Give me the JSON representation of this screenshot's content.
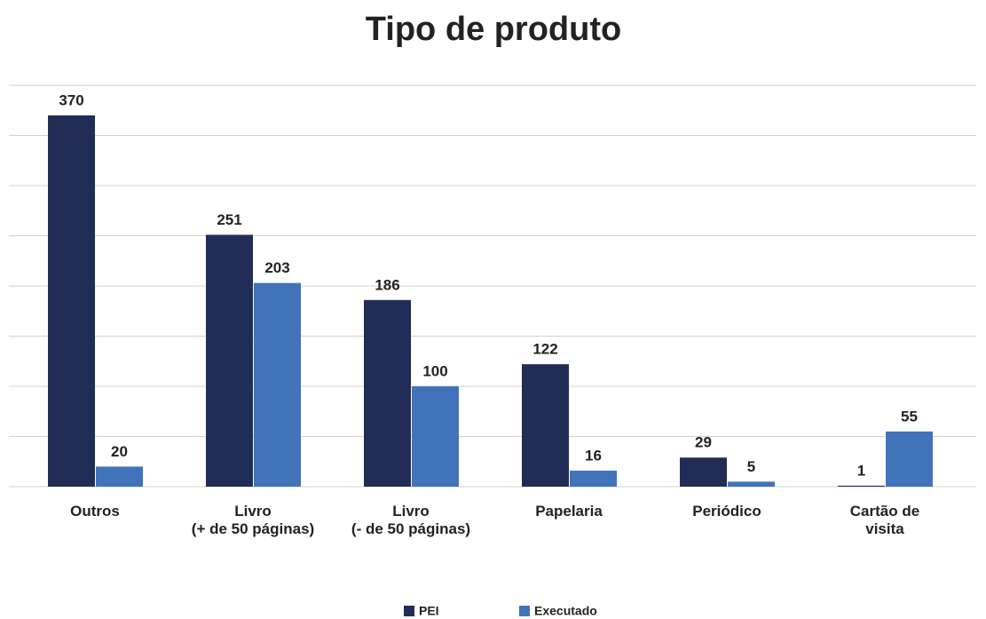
{
  "chart_data": {
    "type": "bar",
    "title": "Tipo de produto",
    "categories": [
      "Outros",
      "Livro\n(+ de 50 páginas)",
      "Livro\n(- de 50 páginas)",
      "Papelaria",
      "Periódico",
      "Cartão de\nvisita"
    ],
    "series": [
      {
        "name": "PEI",
        "color": "#212d56",
        "values": [
          370,
          251,
          186,
          122,
          29,
          1
        ]
      },
      {
        "name": "Executado",
        "color": "#4173bb",
        "values": [
          20,
          203,
          100,
          16,
          5,
          55
        ]
      }
    ],
    "ylim": [
      0,
      400
    ],
    "yticks": [
      0,
      50,
      100,
      150,
      200,
      250,
      300,
      350,
      400
    ],
    "grid": true,
    "legend": "bottom"
  }
}
